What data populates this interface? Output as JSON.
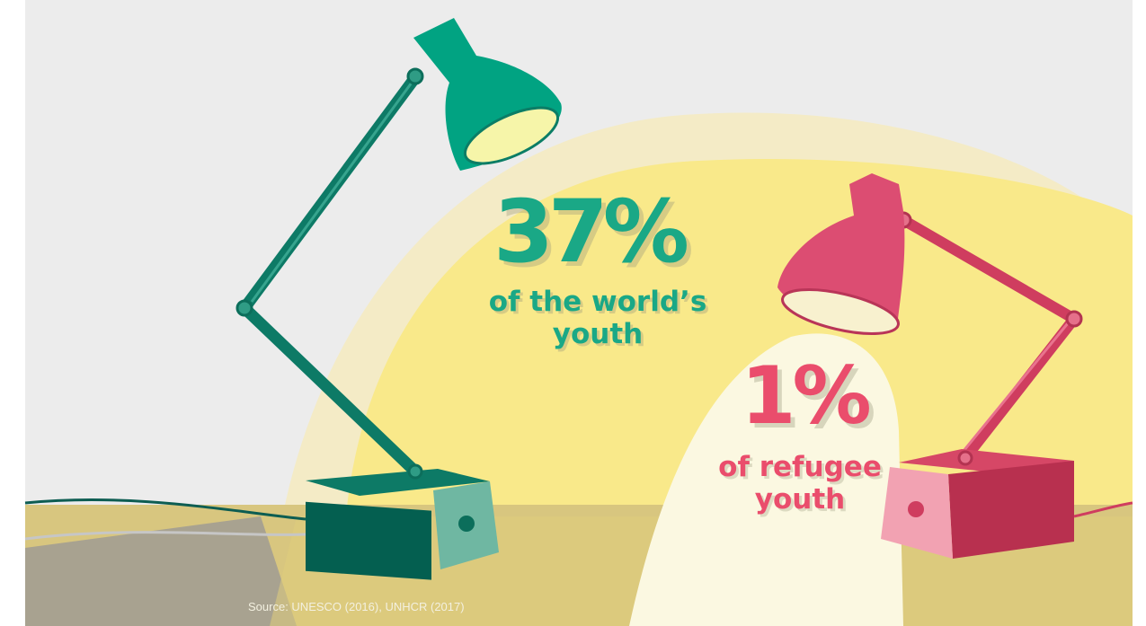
{
  "stats": {
    "world": {
      "value": "37%",
      "caption_line1": "of the world’s",
      "caption_line2": "youth"
    },
    "refugee": {
      "value": "1%",
      "caption_line1": "of refugee",
      "caption_line2": "youth"
    }
  },
  "source": "Source: UNESCO (2016), UNHCR (2017)",
  "colors": {
    "green_lamp": "#01a382",
    "dark_green_arm": "#0d7a66",
    "pink_lamp": "#dc4d72",
    "pink_arm": "#cf3d5f",
    "light_yellow": "#f9e98a",
    "background_grey": "#ececec",
    "table": "#d8c67f",
    "stat_green": "#1aa886",
    "stat_pink": "#ea4d6c"
  },
  "icons": [
    "green-desk-lamp-icon",
    "pink-desk-lamp-icon"
  ]
}
